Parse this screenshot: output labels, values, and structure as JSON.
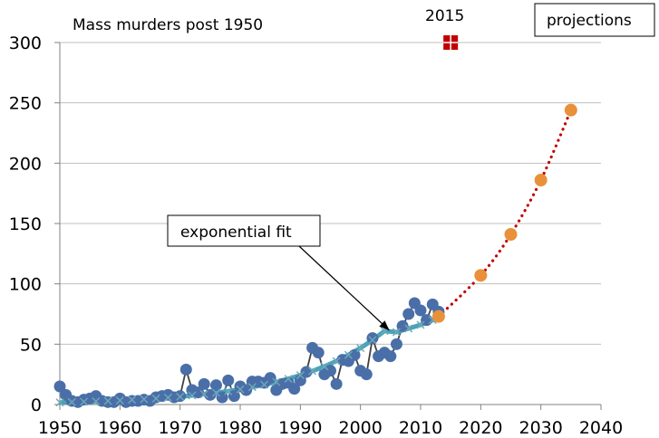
{
  "chart_data": {
    "type": "line",
    "title": "Mass murders post 1950",
    "xlabel": "",
    "ylabel": "",
    "xlim": [
      1950,
      2040
    ],
    "ylim": [
      0,
      300
    ],
    "xticks": [
      1950,
      1960,
      1970,
      1980,
      1990,
      2000,
      2010,
      2020,
      2030,
      2040
    ],
    "yticks": [
      0,
      50,
      100,
      150,
      200,
      250,
      300
    ],
    "grid": "horizontal",
    "series": [
      {
        "name": "",
        "kind": "observed",
        "color": "#4a6fa8",
        "line_color": "#404040",
        "x": [
          1950,
          1951,
          1952,
          1953,
          1954,
          1955,
          1956,
          1957,
          1958,
          1959,
          1960,
          1961,
          1962,
          1963,
          1964,
          1965,
          1966,
          1967,
          1968,
          1969,
          1970,
          1971,
          1972,
          1973,
          1974,
          1975,
          1976,
          1977,
          1978,
          1979,
          1980,
          1981,
          1982,
          1983,
          1984,
          1985,
          1986,
          1987,
          1988,
          1989,
          1990,
          1991,
          1992,
          1993,
          1994,
          1995,
          1996,
          1997,
          1998,
          1999,
          2000,
          2001,
          2002,
          2003,
          2004,
          2005,
          2006,
          2007,
          2008,
          2009,
          2010,
          2011,
          2012,
          2013
        ],
        "y": [
          15,
          8,
          3,
          2,
          4,
          5,
          7,
          3,
          2,
          2,
          5,
          2,
          3,
          3,
          4,
          3,
          6,
          7,
          8,
          6,
          7,
          29,
          12,
          10,
          17,
          8,
          16,
          6,
          20,
          7,
          15,
          12,
          19,
          19,
          18,
          22,
          12,
          17,
          18,
          13,
          20,
          27,
          47,
          43,
          25,
          28,
          17,
          37,
          36,
          41,
          28,
          25,
          55,
          40,
          43,
          40,
          50,
          65,
          75,
          84,
          78,
          70,
          83,
          77
        ]
      },
      {
        "name": "exponential fit",
        "kind": "fit",
        "color": "#4aa3b8",
        "x": [
          1950,
          1952,
          1954,
          1956,
          1958,
          1960,
          1962,
          1964,
          1966,
          1968,
          1970,
          1972,
          1974,
          1976,
          1978,
          1980,
          1982,
          1984,
          1986,
          1988,
          1990,
          1992,
          1994,
          1996,
          1998,
          2000,
          2002,
          2004,
          2006,
          2008,
          2010,
          2012,
          2013
        ],
        "y": [
          1.7,
          2.0,
          2.3,
          2.6,
          3.0,
          3.4,
          3.9,
          4.4,
          5.0,
          5.7,
          6.5,
          7.5,
          8.5,
          9.7,
          11.1,
          12.6,
          14.4,
          16.4,
          18.7,
          21.3,
          24.3,
          27.7,
          31.6,
          36.0,
          41.1,
          46.8,
          53.4,
          60.9,
          60.0,
          63.0,
          66.0,
          70.0,
          72.0
        ]
      },
      {
        "name": "projections",
        "kind": "projection",
        "color": "#e8913a",
        "line_color": "#c00000",
        "x": [
          2013,
          2020,
          2025,
          2030,
          2035
        ],
        "y": [
          73,
          107,
          141,
          186,
          244
        ]
      },
      {
        "name": "2015",
        "kind": "highlight",
        "color": "#c00000",
        "x": [
          2015
        ],
        "y": [
          300
        ]
      }
    ],
    "annotations": [
      {
        "text": "exponential fit",
        "points_to": [
          2006,
          60
        ]
      },
      {
        "text": "projections"
      },
      {
        "text": "2015"
      }
    ]
  }
}
